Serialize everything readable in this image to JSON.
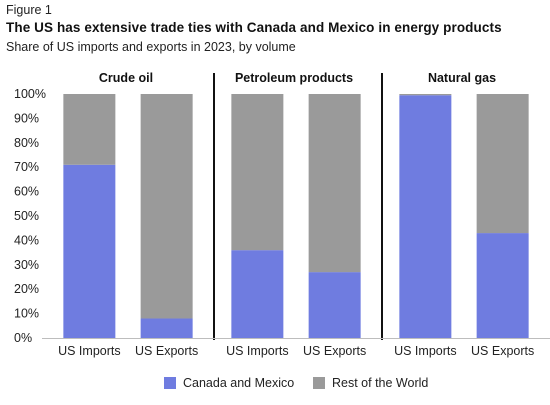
{
  "figure_label": "Figure 1",
  "title": "The US has extensive trade ties with Canada and Mexico in energy products",
  "subtitle": "Share of US imports and exports in 2023, by volume",
  "colors": {
    "canada_mexico": "#6f7ce0",
    "rest_of_world": "#9a9a9a",
    "divider": "#111111",
    "axis": "#bdbdbd"
  },
  "legend": [
    {
      "label": "Canada and Mexico",
      "color": "#6f7ce0"
    },
    {
      "label": "Rest of the World",
      "color": "#9a9a9a"
    }
  ],
  "chart_data": {
    "type": "bar",
    "stacked": true,
    "ylim": [
      0,
      100
    ],
    "yticks": [
      "0%",
      "10%",
      "20%",
      "30%",
      "40%",
      "50%",
      "60%",
      "70%",
      "80%",
      "90%",
      "100%"
    ],
    "panels": [
      {
        "title": "Crude oil",
        "categories": [
          "US Imports",
          "US Exports"
        ],
        "series": [
          {
            "name": "Canada and Mexico",
            "values": [
              71,
              8
            ]
          },
          {
            "name": "Rest of the World",
            "values": [
              29,
              92
            ]
          }
        ]
      },
      {
        "title": "Petroleum products",
        "categories": [
          "US Imports",
          "US Exports"
        ],
        "series": [
          {
            "name": "Canada and Mexico",
            "values": [
              36,
              27
            ]
          },
          {
            "name": "Rest of the World",
            "values": [
              64,
              73
            ]
          }
        ]
      },
      {
        "title": "Natural gas",
        "categories": [
          "US Imports",
          "US Exports"
        ],
        "series": [
          {
            "name": "Canada and Mexico",
            "values": [
              99.5,
              43
            ]
          },
          {
            "name": "Rest of the World",
            "values": [
              0.5,
              57
            ]
          }
        ]
      }
    ]
  }
}
